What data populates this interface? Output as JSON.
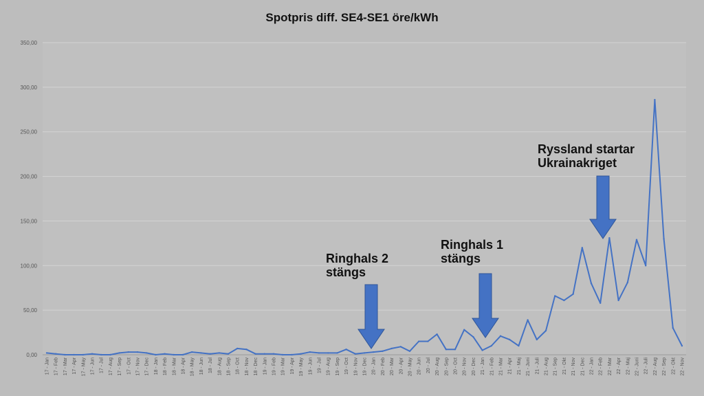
{
  "chart_data": {
    "type": "line",
    "title": "Spotpris diff. SE4-SE1 öre/kWh",
    "xlabel": "",
    "ylabel": "",
    "ylim": [
      0,
      350
    ],
    "yticks": [
      "0,00",
      "50,00",
      "100,00",
      "150,00",
      "200,00",
      "250,00",
      "300,00",
      "350,00"
    ],
    "grid": true,
    "legend": "none",
    "colors": {
      "line": "#4472c4",
      "plot_bg": "#c0c0c0",
      "page_bg": "#bdbdbd",
      "grid": "#d4d4d4",
      "arrow": "#4472c4"
    },
    "categories": [
      "17 - Jan",
      "17 - Feb",
      "17 - Mar",
      "17 - Apr",
      "17 - May",
      "17 - Jun",
      "17 - Jul",
      "17 - Aug",
      "17 - Sep",
      "17 - Oct",
      "17 - Nov",
      "17 - Dec",
      "18 - Jan",
      "18 - Feb",
      "18 - Mar",
      "18 - Apr",
      "18 - May",
      "18 - Jun",
      "18 - Jul",
      "18 - Aug",
      "18 - Sep",
      "18 - Oct",
      "18 - Nov",
      "18 - Dec",
      "19 - Jan",
      "19 - Feb",
      "19 - Mar",
      "19 - Apr",
      "19 - May",
      "19 - Jun",
      "19 - Jul",
      "19 - Aug",
      "19 - Sep",
      "19 - Oct",
      "19 - Nov",
      "19 - Dec",
      "20 - Jan",
      "20 - Feb",
      "20 - Mar",
      "20 - Apr",
      "20 - May",
      "20 - Jun",
      "20 - Jul",
      "20 - Aug",
      "20 - Sep",
      "20 - Oct",
      "20 - Nov",
      "20 - Dec",
      "21 - Jan",
      "21 - Feb",
      "21 - Mar",
      "21 - Apr",
      "21 - Maj",
      "21 - Juni",
      "21 - Juli",
      "21 - Aug",
      "21 - Sep",
      "21 - Okt",
      "21 - Nov",
      "21 - Dec",
      "22 - Jan",
      "22 - Feb",
      "22 - Mar",
      "22 - Apr",
      "22 - Maj",
      "22 - Juni",
      "22 - Juli",
      "22 - Aug",
      "22 - Sep",
      "22 - Okt",
      "22 - Nov"
    ],
    "series": [
      {
        "values": [
          2,
          1,
          0,
          0,
          0,
          1,
          0,
          0,
          2,
          3,
          3,
          2,
          0,
          1,
          0,
          0,
          3,
          2,
          1,
          2,
          1,
          7,
          6,
          1,
          1,
          1,
          0,
          0,
          1,
          3,
          2,
          2,
          2,
          6,
          1,
          2,
          3,
          4,
          7,
          9,
          4,
          15,
          15,
          23,
          6,
          6,
          28,
          20,
          5,
          10,
          21,
          17,
          10,
          39,
          17,
          27,
          66,
          61,
          68,
          120,
          80,
          58,
          131,
          61,
          81,
          129,
          100,
          286,
          130,
          30,
          10
        ]
      }
    ],
    "annotations": [
      {
        "lines": [
          "Ringhals 2",
          "stängs"
        ],
        "category": "20 - Jan"
      },
      {
        "lines": [
          "Ringhals 1",
          "stängs"
        ],
        "category": "21 - Jan"
      },
      {
        "lines": [
          "Ryssland startar",
          "Ukrainakriget"
        ],
        "category": "22 - Mar"
      }
    ]
  }
}
